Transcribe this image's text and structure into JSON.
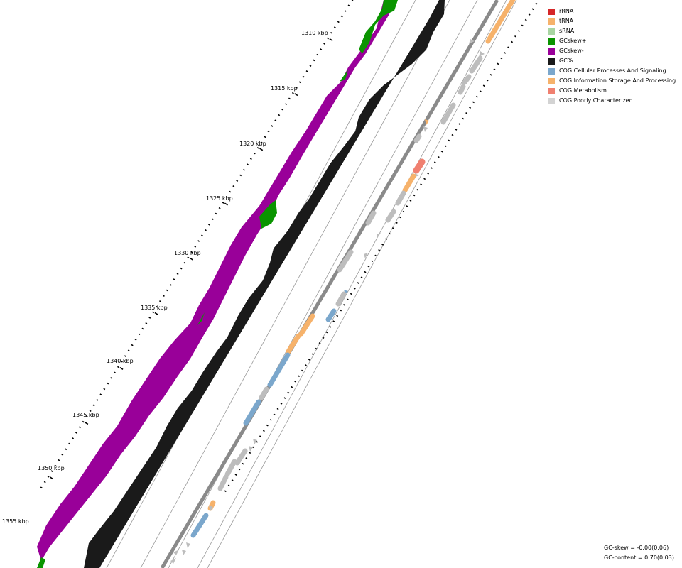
{
  "map": {
    "scale_unit": "kbp",
    "position_labels": [
      "1310 kbp",
      "1315 kbp",
      "1320 kbp",
      "1325 kbp",
      "1330 kbp",
      "1335 kbp",
      "1340 kbp",
      "1345 kbp",
      "1350 kbp",
      "1355 kbp"
    ]
  },
  "legend": {
    "items": [
      {
        "label": "rRNA",
        "color": "#d62728"
      },
      {
        "label": "tRNA",
        "color": "#f6b26b"
      },
      {
        "label": "sRNA",
        "color": "#a8d5a2"
      },
      {
        "label": "GCskew+",
        "color": "#0a9400"
      },
      {
        "label": "GCskew-",
        "color": "#990099"
      },
      {
        "label": "GC%",
        "color": "#1a1a1a"
      },
      {
        "label": "COG Cellular Processes And Signaling",
        "color": "#7ba7cc"
      },
      {
        "label": "COG Information Storage And Processing",
        "color": "#f6b26b"
      },
      {
        "label": "COG Metabolism",
        "color": "#f08070"
      },
      {
        "label": "COG Poorly Characterized",
        "color": "#d3d3d3"
      }
    ]
  },
  "stats": {
    "gc_skew": "GC-skew = -0.00(0.06)",
    "gc_content": "GC-content = 0.70(0.03)"
  },
  "colors": {
    "gene_grey": "#bdbdbd",
    "backbone": "#8a8a8a",
    "ring_line": "#9a9a9a"
  }
}
